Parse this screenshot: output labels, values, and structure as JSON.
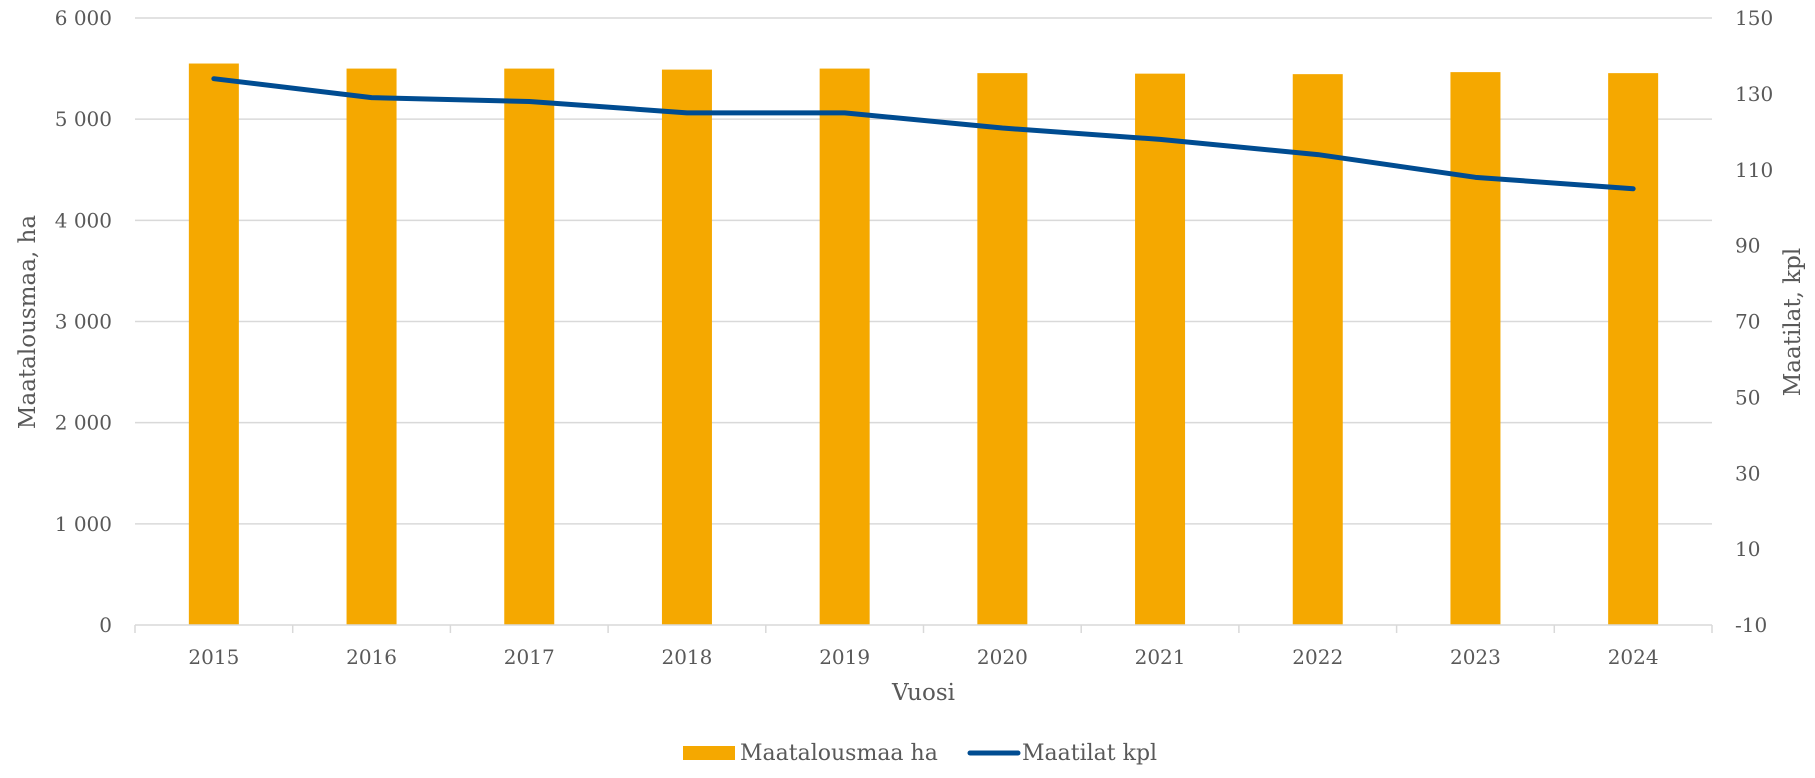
{
  "chart_data": {
    "type": "bar",
    "categories": [
      "2015",
      "2016",
      "2017",
      "2018",
      "2019",
      "2020",
      "2021",
      "2022",
      "2023",
      "2024"
    ],
    "series": [
      {
        "name": "Maatalousmaa ha",
        "type": "bar",
        "axis": "left",
        "color": "#F5A800",
        "values": [
          5550,
          5500,
          5500,
          5490,
          5500,
          5455,
          5450,
          5445,
          5465,
          5455
        ]
      },
      {
        "name": "Maatilat kpl",
        "type": "line",
        "axis": "right",
        "color": "#004C91",
        "values": [
          134,
          129,
          128,
          125,
          125,
          121,
          118,
          114,
          108,
          105
        ]
      }
    ],
    "xlabel": "Vuosi",
    "ylabel": "Maatalousmaa, ha",
    "y2label": "Maatilat, kpl",
    "ylim": [
      0,
      6000
    ],
    "y2lim": [
      -10,
      150
    ],
    "yticks": [
      "0",
      "1 000",
      "2 000",
      "3 000",
      "4 000",
      "5 000",
      "6 000"
    ],
    "y2ticks": [
      "-10",
      "10",
      "30",
      "50",
      "70",
      "90",
      "110",
      "130",
      "150"
    ],
    "grid": true,
    "legend": "bottom-center"
  }
}
